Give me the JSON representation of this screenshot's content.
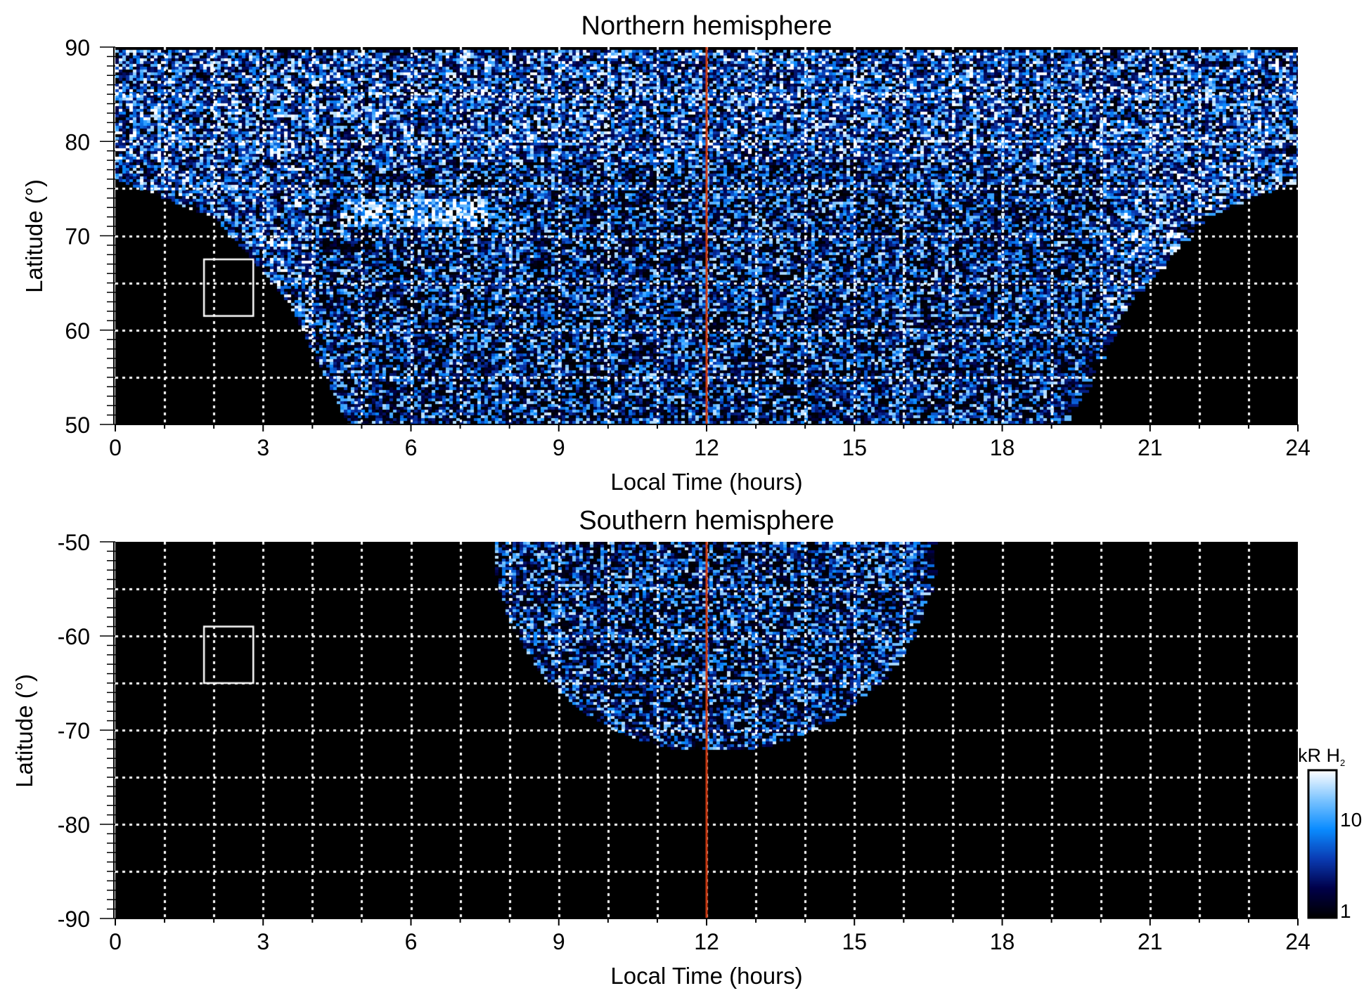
{
  "chart_data": [
    {
      "type": "heatmap",
      "title": "Northern hemisphere",
      "xlabel": "Local Time (hours)",
      "ylabel": "Latitude (°)",
      "xlim": [
        0,
        24
      ],
      "ylim": [
        50,
        90
      ],
      "xticks": [
        "0",
        "3",
        "6",
        "9",
        "12",
        "15",
        "18",
        "21",
        "24"
      ],
      "yticks": [
        "50",
        "60",
        "70",
        "80",
        "90"
      ],
      "grid": true,
      "reference_line_lt": 12,
      "box": {
        "lt": [
          1.8,
          2.8
        ],
        "lat": [
          61.5,
          67.5
        ]
      },
      "emission_extent": {
        "left_boundary": [
          [
            0,
            76
          ],
          [
            2,
            72
          ],
          [
            3.5,
            63
          ],
          [
            4.7,
            50
          ]
        ],
        "right_boundary": [
          [
            19.2,
            50
          ],
          [
            20.5,
            63
          ],
          [
            22,
            72
          ],
          [
            24,
            76
          ]
        ]
      }
    },
    {
      "type": "heatmap",
      "title": "Southern hemisphere",
      "xlabel": "Local Time (hours)",
      "ylabel": "Latitude (°)",
      "xlim": [
        0,
        24
      ],
      "ylim": [
        -90,
        -50
      ],
      "xticks": [
        "0",
        "3",
        "6",
        "9",
        "12",
        "15",
        "18",
        "21",
        "24"
      ],
      "yticks": [
        "-90",
        "-80",
        "-70",
        "-60",
        "-50"
      ],
      "grid": true,
      "reference_line_lt": 12,
      "box": {
        "lt": [
          1.8,
          2.8
        ],
        "lat": [
          -65,
          -59
        ]
      },
      "emission_extent": {
        "lt_range_at_minus50": [
          7.7,
          16.5
        ],
        "min_lat_at_noon": -72
      }
    }
  ],
  "colorbar": {
    "label": "kR H",
    "label_sub": "2",
    "scale": "log",
    "range": [
      1,
      30
    ],
    "ticks": [
      "1",
      "10"
    ],
    "colors": [
      "#000000",
      "#00004a",
      "#0a3cb4",
      "#0a8cff",
      "#7cc4ff",
      "#ffffff"
    ]
  },
  "colors": {
    "reference_line": "#d03a10",
    "grid": "#ffffff",
    "background": "#000000"
  }
}
